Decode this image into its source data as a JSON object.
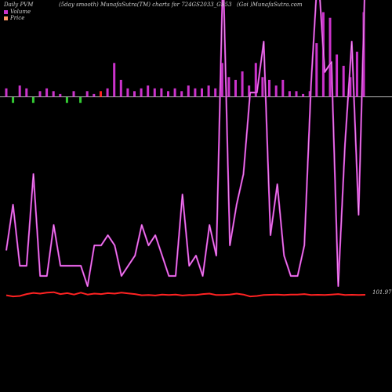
{
  "header": {
    "left": "Daily PVM",
    "mid": "(5day smooth) MunafaSutra(TM) charts for 724GS2033_GS53",
    "right": "(Goi )MunafaSutra.com"
  },
  "legend": {
    "volume": "Volume",
    "price": "Price"
  },
  "colors": {
    "background": "#000000",
    "volume_line": "#cc33cc",
    "price_line": "#ff2222",
    "bar_magenta": "#cc33cc",
    "bar_green": "#33cc33",
    "bar_red": "#ff2222",
    "zero_line": "#bbbbbb",
    "legend_volume": "#cc33cc",
    "legend_price": "#ff9966"
  },
  "price_label": "101.97",
  "chart_data": {
    "type": "line",
    "title": "",
    "xlabel": "",
    "ylabel": "",
    "series": [
      {
        "name": "Volume",
        "values": [
          9,
          18,
          6,
          6,
          24,
          4,
          4,
          14,
          6,
          6,
          6,
          6,
          2,
          10,
          10,
          12,
          10,
          4,
          6,
          8,
          14,
          10,
          12,
          8,
          4,
          4,
          20,
          6,
          8,
          4,
          14,
          8,
          66,
          10,
          18,
          24,
          40,
          40,
          50,
          12,
          22,
          8,
          4,
          4,
          10,
          42,
          100,
          44,
          46,
          2,
          30,
          50,
          16,
          80
        ]
      },
      {
        "name": "Price",
        "values": [
          101.95,
          101.9,
          101.92,
          102.0,
          102.05,
          102.02,
          102.06,
          102.08,
          102.0,
          102.04,
          101.98,
          102.06,
          101.98,
          102.02,
          102.0,
          102.04,
          102.02,
          102.06,
          102.03,
          102.0,
          101.95,
          101.96,
          101.94,
          101.98,
          101.96,
          101.98,
          101.94,
          101.96,
          101.96,
          102.0,
          102.02,
          101.96,
          101.96,
          101.98,
          102.02,
          101.98,
          101.9,
          101.92,
          101.96,
          101.97,
          101.98,
          101.96,
          101.98,
          101.98,
          102.0,
          101.96,
          101.97,
          101.96,
          101.98,
          102.0,
          101.96,
          101.97,
          101.96,
          101.97
        ]
      }
    ],
    "volume_bars": [
      {
        "v": 3,
        "c": "m"
      },
      {
        "v": -2,
        "c": "g"
      },
      {
        "v": 4,
        "c": "m"
      },
      {
        "v": 3,
        "c": "m"
      },
      {
        "v": -2,
        "c": "g"
      },
      {
        "v": 2,
        "c": "m"
      },
      {
        "v": 3,
        "c": "m"
      },
      {
        "v": 2,
        "c": "m"
      },
      {
        "v": 1,
        "c": "m"
      },
      {
        "v": -2,
        "c": "g"
      },
      {
        "v": 2,
        "c": "m"
      },
      {
        "v": -2,
        "c": "g"
      },
      {
        "v": 2,
        "c": "m"
      },
      {
        "v": 1,
        "c": "m"
      },
      {
        "v": 2,
        "c": "r"
      },
      {
        "v": 3,
        "c": "m"
      },
      {
        "v": 12,
        "c": "m"
      },
      {
        "v": 6,
        "c": "m"
      },
      {
        "v": 3,
        "c": "m"
      },
      {
        "v": 2,
        "c": "m"
      },
      {
        "v": 3,
        "c": "m"
      },
      {
        "v": 4,
        "c": "m"
      },
      {
        "v": 3,
        "c": "m"
      },
      {
        "v": 3,
        "c": "m"
      },
      {
        "v": 2,
        "c": "m"
      },
      {
        "v": 3,
        "c": "m"
      },
      {
        "v": 2,
        "c": "m"
      },
      {
        "v": 4,
        "c": "m"
      },
      {
        "v": 3,
        "c": "m"
      },
      {
        "v": 3,
        "c": "m"
      },
      {
        "v": 4,
        "c": "m"
      },
      {
        "v": 3,
        "c": "m"
      },
      {
        "v": 12,
        "c": "m"
      },
      {
        "v": 7,
        "c": "m"
      },
      {
        "v": 6,
        "c": "m"
      },
      {
        "v": 9,
        "c": "m"
      },
      {
        "v": 4,
        "c": "m"
      },
      {
        "v": 12,
        "c": "m"
      },
      {
        "v": 7,
        "c": "m"
      },
      {
        "v": 6,
        "c": "m"
      },
      {
        "v": 4,
        "c": "m"
      },
      {
        "v": 6,
        "c": "m"
      },
      {
        "v": 2,
        "c": "m"
      },
      {
        "v": 2,
        "c": "m"
      },
      {
        "v": 1,
        "c": "m"
      },
      {
        "v": 2,
        "c": "m"
      },
      {
        "v": 19,
        "c": "m"
      },
      {
        "v": 30,
        "c": "m"
      },
      {
        "v": 28,
        "c": "m"
      },
      {
        "v": 15,
        "c": "m"
      },
      {
        "v": 11,
        "c": "m"
      },
      {
        "v": 7,
        "c": "m"
      },
      {
        "v": 16,
        "c": "m"
      },
      {
        "v": 30,
        "c": "m"
      }
    ]
  }
}
